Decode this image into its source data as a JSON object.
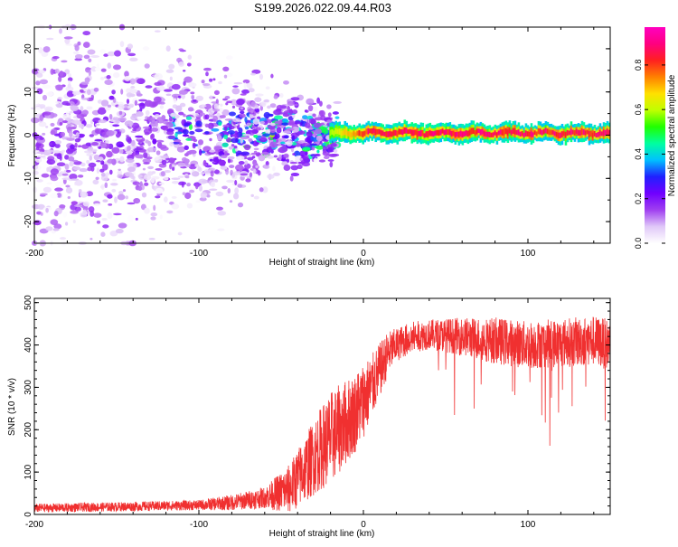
{
  "page": {
    "title": "S199.2026.022.09.44.R03"
  },
  "chart_data": [
    {
      "type": "heatmap",
      "title": "S199.2026.022.09.44.R03",
      "xlabel": "Height of straight line (km)",
      "ylabel": "Frequency (Hz)",
      "xlim": [
        -200,
        150
      ],
      "ylim": [
        -25,
        25
      ],
      "xticks": [
        -200,
        -100,
        0,
        100
      ],
      "yticks": [
        -20,
        -10,
        0,
        10,
        20
      ],
      "xtick_labels": [
        "-200",
        "-100",
        "0",
        "100"
      ],
      "ytick_labels": [
        "-20",
        "-10",
        "0",
        "10",
        "20"
      ],
      "colorbar": {
        "label": "Normalized spectral amplitude",
        "range": [
          0,
          0.97
        ],
        "ticks": [
          0.0,
          0.2,
          0.4,
          0.6,
          0.8
        ],
        "tick_labels": [
          "0.0",
          "0.2",
          "0.4",
          "0.6",
          "0.8"
        ],
        "colors": [
          "#ffffff",
          "#e0c8f8",
          "#a040f0",
          "#7000ff",
          "#2020ff",
          "#00c0ff",
          "#00ffa0",
          "#20ff00",
          "#c0ff00",
          "#ffe000",
          "#ff8000",
          "#ff2020",
          "#ff0080",
          "#ff00c0"
        ]
      },
      "features": {
        "noise_region_km": [
          -200,
          -20
        ],
        "noise_freq_spread_hz": 24,
        "tone_start_km": -20,
        "tone_frequency_hz": 0.5,
        "peak_region_km": [
          0,
          150
        ],
        "peak_amplitude": 0.95
      }
    },
    {
      "type": "line",
      "xlabel": "Height of straight line (km)",
      "ylabel": "SNR (10 * v/v)",
      "xlim": [
        -200,
        150
      ],
      "ylim": [
        0,
        510
      ],
      "xticks": [
        -200,
        -100,
        0,
        100
      ],
      "yticks": [
        0,
        100,
        200,
        300,
        400,
        500
      ],
      "xtick_labels": [
        "-200",
        "-100",
        "0",
        "100"
      ],
      "ytick_labels": [
        "0",
        "100",
        "200",
        "300",
        "400",
        "500"
      ],
      "series": [
        {
          "name": "SNR",
          "color": "#f03030",
          "mean_curve": {
            "x": [
              -200,
              -150,
              -100,
              -80,
              -60,
              -45,
              -35,
              -25,
              -15,
              -5,
              0,
              5,
              10,
              15,
              20,
              25,
              30,
              40,
              60,
              80,
              100,
              120,
              140,
              150
            ],
            "y": [
              15,
              18,
              22,
              28,
              40,
              60,
              110,
              160,
              200,
              240,
              270,
              300,
              340,
              380,
              400,
              410,
              418,
              425,
              420,
              410,
              400,
              405,
              410,
              400
            ]
          },
          "noise_amplitude": {
            "x": [
              -200,
              -100,
              -60,
              -40,
              -20,
              0,
              20,
              40,
              80,
              150
            ],
            "y": [
              10,
              12,
              25,
              70,
              110,
              90,
              40,
              35,
              55,
              60
            ]
          }
        }
      ]
    }
  ]
}
